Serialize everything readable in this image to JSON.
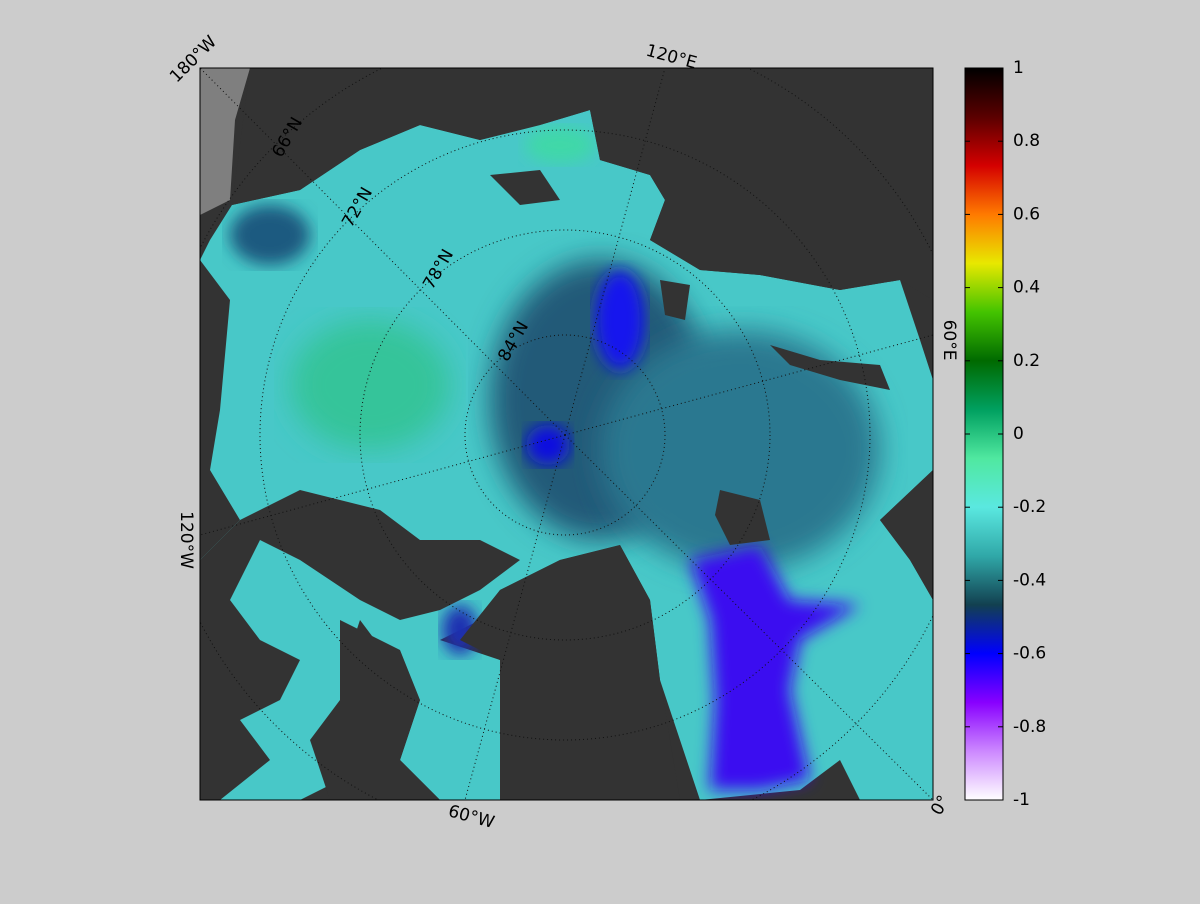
{
  "map": {
    "lon_labels": [
      "180°W",
      "120°E",
      "60°E",
      "0°",
      "60°W",
      "120°W"
    ],
    "lat_labels": [
      "66°N",
      "72°N",
      "78°N",
      "84°N"
    ]
  },
  "colorbar": {
    "lim": [
      -1,
      1
    ],
    "ticks": [
      -1,
      -0.8,
      -0.6,
      -0.4,
      -0.2,
      0,
      0.2,
      0.4,
      0.6,
      0.8,
      1
    ],
    "colors": [
      "#000000",
      "#5a0000",
      "#d40000",
      "#ff7a00",
      "#e8e800",
      "#44c400",
      "#006a00",
      "#00a060",
      "#50e8a0",
      "#5ae8e0",
      "#30a8a8",
      "#124050",
      "#0000ff",
      "#8800ff",
      "#cc88ff",
      "#ffffff"
    ]
  }
}
